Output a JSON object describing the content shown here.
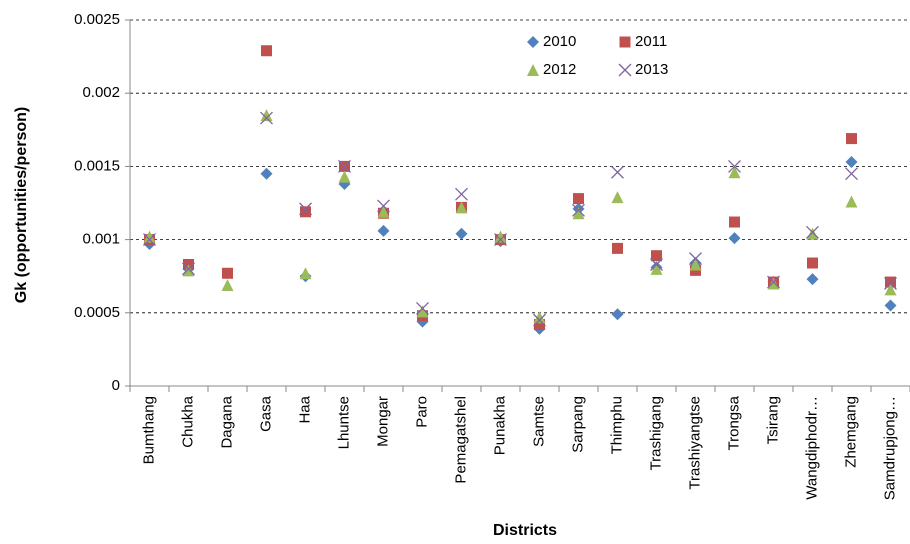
{
  "chart_data": {
    "type": "scatter",
    "x_label": "Districts",
    "y_label": "Gk (opportunities/person)",
    "categories": [
      "Bumthang",
      "Chukha",
      "Dagana",
      "Gasa",
      "Haa",
      "Lhuntse",
      "Mongar",
      "Paro",
      "Pemagatshel",
      "Punakha",
      "Samtse",
      "Sarpang",
      "Thimphu",
      "Trashigang",
      "Trashiyangtse",
      "Trongsa",
      "Tsirang",
      "Wangdiphodr…",
      "Zhemgang",
      "Samdrupjong…"
    ],
    "series": [
      {
        "name": "2010",
        "color": "#4f81bd",
        "marker": "diamond",
        "values": [
          0.00097,
          0.0008,
          null,
          0.00145,
          0.00075,
          0.00138,
          0.00106,
          0.00044,
          0.00104,
          0.00099,
          0.00039,
          0.00121,
          0.00049,
          0.00081,
          0.00084,
          0.00101,
          0.00071,
          0.00073,
          0.00153,
          0.00055
        ]
      },
      {
        "name": "2011",
        "color": "#c0504d",
        "marker": "square",
        "values": [
          0.001,
          0.00083,
          0.00077,
          0.00229,
          0.00119,
          0.0015,
          0.00118,
          0.00048,
          0.00122,
          0.001,
          0.00042,
          0.00128,
          0.00094,
          0.00089,
          0.00079,
          0.00112,
          0.00071,
          0.00084,
          0.00169,
          0.00071
        ]
      },
      {
        "name": "2012",
        "color": "#9bbb59",
        "marker": "triangle",
        "values": [
          0.00102,
          0.00079,
          0.00069,
          0.00185,
          0.00077,
          0.00143,
          0.00119,
          0.00051,
          0.00122,
          0.00102,
          0.00047,
          0.00118,
          0.00129,
          0.0008,
          0.00083,
          0.00146,
          0.0007,
          0.00104,
          0.00126,
          0.00066
        ]
      },
      {
        "name": "2013",
        "color": "#8064a2",
        "marker": "x",
        "values": [
          0.001,
          0.0008,
          null,
          0.00183,
          0.00121,
          0.0015,
          0.00123,
          0.00053,
          0.00131,
          0.001,
          0.00045,
          0.0012,
          0.00146,
          0.00083,
          0.00087,
          0.0015,
          0.00071,
          0.00105,
          0.00145,
          0.0007
        ]
      }
    ],
    "ylim": [
      0,
      0.0025
    ],
    "yticks": [
      0,
      0.0005,
      0.001,
      0.0015,
      0.002,
      0.0025
    ],
    "grid": true,
    "legend": "top"
  }
}
